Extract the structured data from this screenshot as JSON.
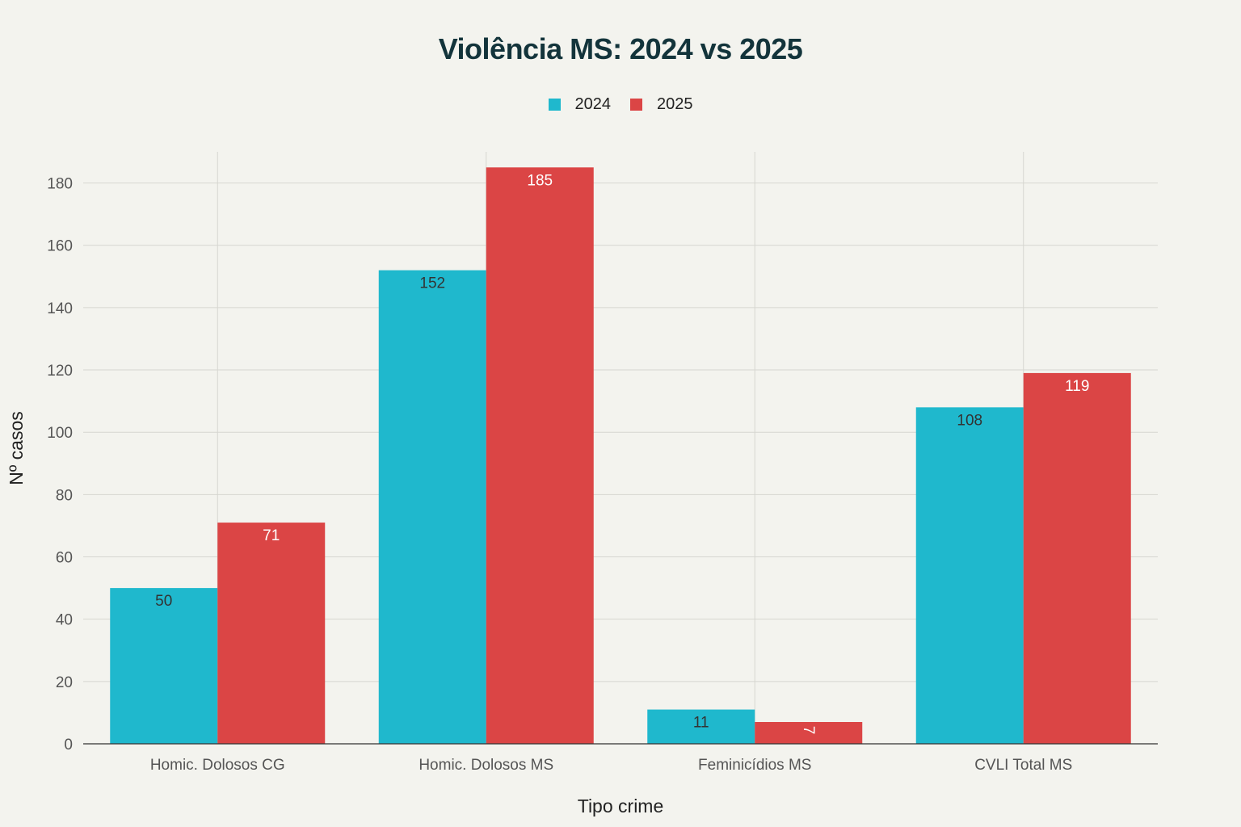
{
  "chart_data": {
    "type": "bar",
    "title": "Violência MS: 2024 vs 2025",
    "xlabel": "Tipo crime",
    "ylabel": "Nº casos",
    "categories": [
      "Homic. Dolosos CG",
      "Homic. Dolosos MS",
      "Feminicídios MS",
      "CVLI Total MS"
    ],
    "series": [
      {
        "name": "2024",
        "color": "#1fb8cd",
        "label_color": "#333333",
        "values": [
          50,
          152,
          11,
          108
        ]
      },
      {
        "name": "2025",
        "color": "#db4545",
        "label_color": "#ffffff",
        "values": [
          71,
          185,
          7,
          119
        ]
      }
    ],
    "ylim": [
      0,
      190
    ],
    "yticks": [
      0,
      20,
      40,
      60,
      80,
      100,
      120,
      140,
      160,
      180
    ],
    "grid": true,
    "legend_position": "top-center"
  }
}
